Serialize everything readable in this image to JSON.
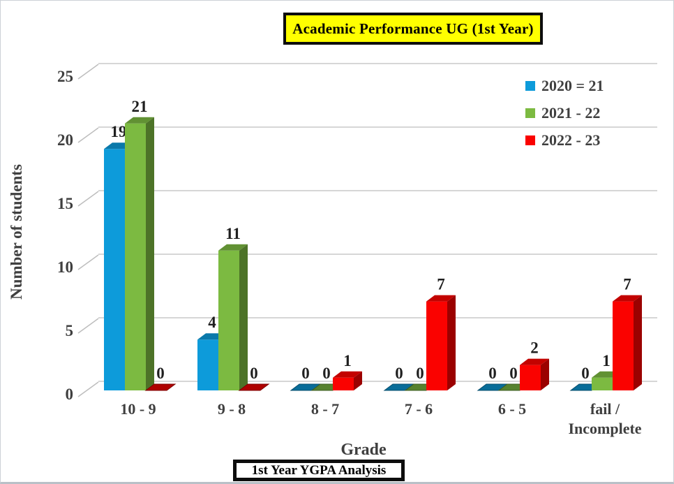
{
  "title": "Academic Performance UG (1st Year)",
  "footer_box_label": "1st Year YGPA Analysis",
  "axes": {
    "y_title": "Number of students",
    "x_title": "Grade"
  },
  "legend": {
    "position": "top-right",
    "items": [
      {
        "label": "2020 = 21",
        "color": "#0d9bda"
      },
      {
        "label": "2021 - 22",
        "color": "#7cba41"
      },
      {
        "label": "2022 - 23",
        "color": "#fa0200"
      }
    ]
  },
  "chart_data": {
    "type": "bar",
    "subtype": "3d-clustered-column",
    "title": "Academic Performance UG (1st Year)",
    "xlabel": "Grade",
    "ylabel": "Number of students",
    "ylim": [
      0,
      25
    ],
    "y_ticks": [
      0,
      5,
      10,
      15,
      20,
      25
    ],
    "grid": true,
    "data_labels": true,
    "legend_position": "top-right",
    "categories": [
      "10 - 9",
      "9 - 8",
      "8 - 7",
      "7 - 6",
      "6 - 5",
      "fail /\nIncomplete"
    ],
    "series": [
      {
        "name": "2020 = 21",
        "color": "#0d9bda",
        "values": [
          19,
          4,
          0,
          0,
          0,
          0
        ]
      },
      {
        "name": "2021 - 22",
        "color": "#7cba41",
        "values": [
          21,
          11,
          0,
          0,
          0,
          1
        ]
      },
      {
        "name": "2022 - 23",
        "color": "#fa0200",
        "values": [
          0,
          0,
          1,
          7,
          2,
          7
        ]
      }
    ]
  },
  "colors": {
    "grid_line": "#c9c9c9",
    "tick_line": "#bdbdbd",
    "axis_text": "#3f3f3f",
    "data_label_text": "#1f1f1f",
    "title_bg": "#ffff00",
    "box_border": "#0d0d0d"
  }
}
